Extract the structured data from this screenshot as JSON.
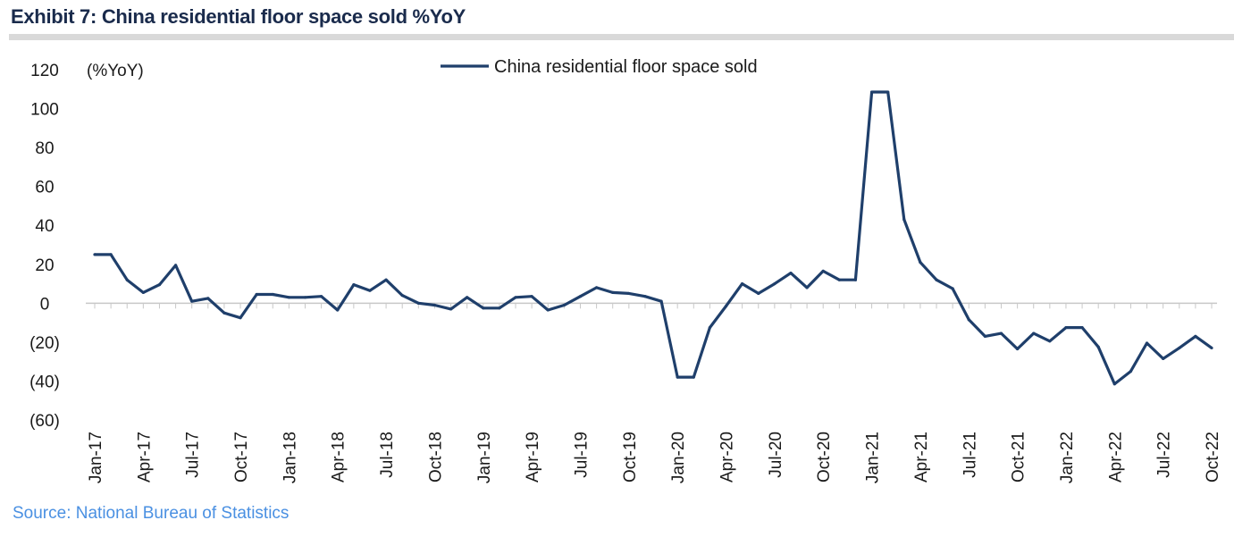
{
  "title": "Exhibit 7: China residential floor space sold %YoY",
  "source": "Source: National Bureau of Statistics",
  "colors": {
    "line": "#1f3f6b",
    "zero_line": "#c8c8c8",
    "rule": "#d9d9d9"
  },
  "chart_data": {
    "type": "line",
    "title": "Exhibit 7: China residential floor space sold %YoY",
    "ylabel": "(%YoY)",
    "xlabel": "",
    "ylim": [
      -60,
      120
    ],
    "yticks": [
      120,
      100,
      80,
      60,
      40,
      20,
      0,
      -20,
      -40,
      -60
    ],
    "ytick_labels": [
      "120",
      "100",
      "80",
      "60",
      "40",
      "20",
      "0",
      "(20)",
      "(40)",
      "(60)"
    ],
    "xtick_labels": [
      "Jan-17",
      "Apr-17",
      "Jul-17",
      "Oct-17",
      "Jan-18",
      "Apr-18",
      "Jul-18",
      "Oct-18",
      "Jan-19",
      "Apr-19",
      "Jul-19",
      "Oct-19",
      "Jan-20",
      "Apr-20",
      "Jul-20",
      "Oct-20",
      "Jan-21",
      "Apr-21",
      "Jul-21",
      "Oct-21",
      "Jan-22",
      "Apr-22",
      "Jul-22",
      "Oct-22"
    ],
    "legend": "top-center",
    "series": [
      {
        "name": "China residential floor space sold",
        "values": [
          25.0,
          25.0,
          12.0,
          5.5,
          9.5,
          19.5,
          1.0,
          2.5,
          -5.0,
          -7.5,
          4.5,
          4.5,
          3.0,
          3.0,
          3.5,
          -3.5,
          9.5,
          6.5,
          12.0,
          4.0,
          0.0,
          -1.0,
          -3.0,
          3.0,
          -2.5,
          -2.5,
          3.0,
          3.5,
          -3.5,
          -1.0,
          3.5,
          8.0,
          5.5,
          5.0,
          3.5,
          1.0,
          -38.0,
          -38.0,
          -12.5,
          -1.5,
          10.0,
          5.0,
          10.0,
          15.5,
          8.0,
          16.5,
          12.0,
          12.0,
          108.5,
          108.5,
          43.0,
          21.0,
          12.0,
          7.5,
          -8.5,
          -17.0,
          -15.5,
          -23.5,
          -15.5,
          -19.5,
          -12.5,
          -12.5,
          -22.5,
          -41.5,
          -35.0,
          -20.5,
          -28.5,
          -23.0,
          -17.0,
          -23.0
        ]
      }
    ]
  }
}
